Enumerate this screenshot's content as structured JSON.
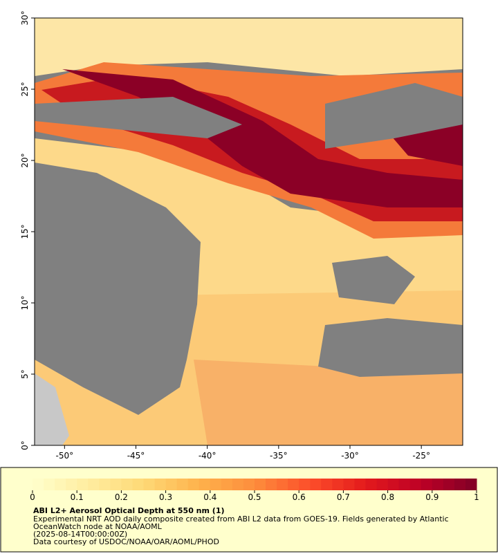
{
  "map": {
    "xlim": [
      -52.1,
      -22.1
    ],
    "ylim": [
      0,
      30
    ],
    "xticks": [
      {
        "value": -50,
        "label": "-50°"
      },
      {
        "value": -45,
        "label": "-45°"
      },
      {
        "value": -40,
        "label": "-40°"
      },
      {
        "value": -35,
        "label": "-35°"
      },
      {
        "value": -30,
        "label": "-30°"
      },
      {
        "value": -25,
        "label": "-25°"
      }
    ],
    "yticks": [
      {
        "value": 0,
        "label": "0°"
      },
      {
        "value": 5,
        "label": "5°"
      },
      {
        "value": 10,
        "label": "10°"
      },
      {
        "value": 15,
        "label": "15°"
      },
      {
        "value": 20,
        "label": "20°"
      },
      {
        "value": 25,
        "label": "25°"
      },
      {
        "value": 30,
        "label": "30°"
      }
    ]
  },
  "colorbar": {
    "range": [
      0,
      1
    ],
    "ticks": [
      0,
      0.1,
      0.2,
      0.3,
      0.4,
      0.5,
      0.6,
      0.7,
      0.8,
      0.9,
      1
    ],
    "colors": [
      "#ffffcc",
      "#ffeda0",
      "#fed976",
      "#feb24c",
      "#fd8d3c",
      "#fc4e2a",
      "#e31a1c",
      "#bd0026",
      "#800026"
    ]
  },
  "caption": {
    "title": "ABI L2+ Aerosol Optical Depth at 550 nm (1)",
    "lines": [
      "Experimental NRT AOD daily composite created from ABI L2 data from GOES-19. Fields generated by Atlantic",
      "OceanWatch node at NOAA/AOML",
      "(2025-08-14T00:00:00Z)",
      "Data courtesy of USDOC/NOAA/OAR/AOML/PHOD"
    ]
  }
}
